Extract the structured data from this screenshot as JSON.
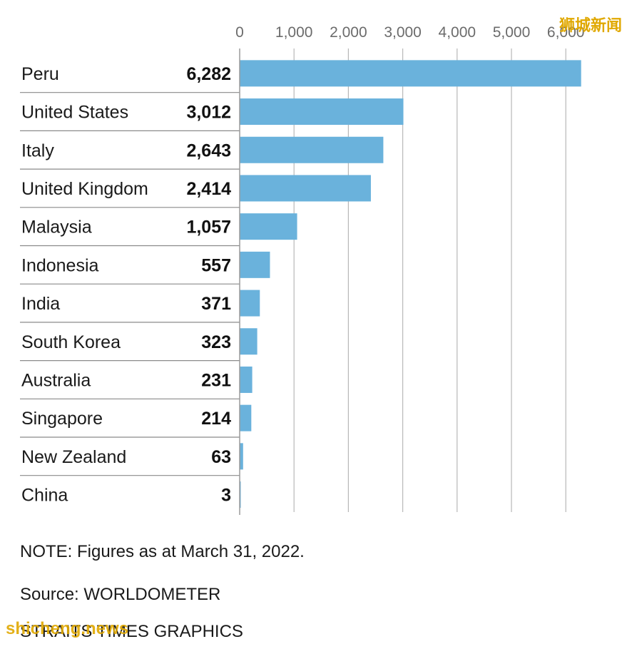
{
  "chart_data": {
    "type": "bar",
    "orientation": "horizontal",
    "categories": [
      "Peru",
      "United States",
      "Italy",
      "United Kingdom",
      "Malaysia",
      "Indonesia",
      "India",
      "South Korea",
      "Australia",
      "Singapore",
      "New Zealand",
      "China"
    ],
    "values": [
      6282,
      3012,
      2643,
      2414,
      1057,
      557,
      371,
      323,
      231,
      214,
      63,
      3
    ],
    "value_labels": [
      "6,282",
      "3,012",
      "2,643",
      "2,414",
      "1,057",
      "557",
      "371",
      "323",
      "231",
      "214",
      "63",
      "3"
    ],
    "xlim": [
      0,
      6000
    ],
    "xticks": [
      0,
      1000,
      2000,
      3000,
      4000,
      5000,
      6000
    ],
    "xtick_labels": [
      "0",
      "1,000",
      "2,000",
      "3,000",
      "4,000",
      "5,000",
      "6,000"
    ],
    "grid": true,
    "bar_color": "#6ab2dc"
  },
  "note": "NOTE: Figures as at March 31, 2022.",
  "source": "Source: WORLDOMETER",
  "credit": "STRAITS TIMES GRAPHICS",
  "watermark_top": "狮城新闻",
  "watermark_bottom": "shicheng.news"
}
